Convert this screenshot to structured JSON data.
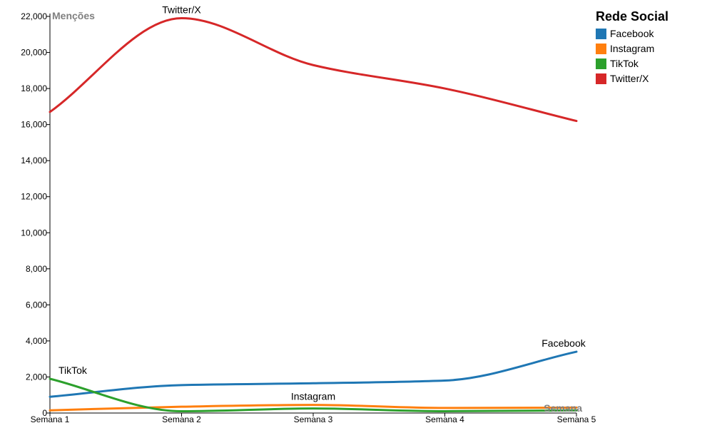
{
  "chart_data": {
    "type": "line",
    "categories": [
      "Semana 1",
      "Semana 2",
      "Semana 3",
      "Semana 4",
      "Semana 5"
    ],
    "ylabel": "Menções",
    "xlabel": "Semana",
    "ylim": [
      0,
      22000
    ],
    "yticks": [
      0,
      2000,
      4000,
      6000,
      8000,
      10000,
      12000,
      14000,
      16000,
      18000,
      20000,
      22000
    ],
    "ytick_labels": [
      "0",
      "2,000",
      "4,000",
      "6,000",
      "8,000",
      "10,000",
      "12,000",
      "14,000",
      "16,000",
      "18,000",
      "20,000",
      "22,000"
    ],
    "legend_title": "Rede Social",
    "legend_position": "top-right",
    "grid": false,
    "series": [
      {
        "name": "Facebook",
        "color": "#1f77b4",
        "values": [
          900,
          1550,
          1650,
          1800,
          3400
        ],
        "label_at": 4
      },
      {
        "name": "Instagram",
        "color": "#ff7f0e",
        "values": [
          150,
          350,
          450,
          280,
          300
        ],
        "label_at": 2
      },
      {
        "name": "TikTok",
        "color": "#2ca02c",
        "values": [
          1900,
          100,
          250,
          100,
          150
        ],
        "label_at": 0
      },
      {
        "name": "Twitter/X",
        "color": "#d62728",
        "values": [
          16700,
          21900,
          19300,
          18000,
          16200
        ],
        "label_at": 1
      }
    ]
  }
}
